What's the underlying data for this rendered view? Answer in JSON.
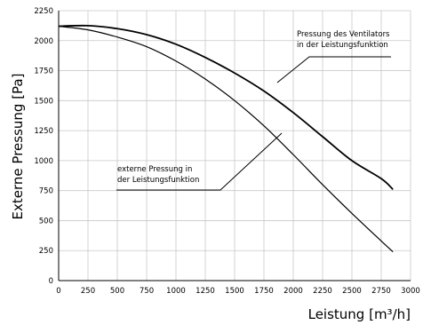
{
  "chart_data": {
    "type": "line",
    "xlabel": "Leistung [m³/h]",
    "ylabel": "Externe Pressung [Pa]",
    "xlim": [
      0,
      3000
    ],
    "ylim": [
      0,
      2250
    ],
    "x_ticks": [
      0,
      250,
      500,
      750,
      1000,
      1250,
      1500,
      1750,
      2000,
      2250,
      2500,
      2750,
      3000
    ],
    "x_tick_labels": [
      "0",
      "250",
      "500",
      "750",
      "1000",
      "1250",
      "1500",
      "1750",
      "2000",
      "2250",
      "2500",
      "2750",
      "3000"
    ],
    "y_ticks": [
      0,
      250,
      500,
      750,
      1000,
      1250,
      1500,
      1750,
      2000,
      2250
    ],
    "y_tick_labels": [
      "0",
      "250",
      "500",
      "750",
      "1000",
      "1250",
      "1500",
      "1750",
      "2000",
      "2250"
    ],
    "grid": true,
    "series": [
      {
        "name": "Pressung des Ventilators in der Leistungsfunktion",
        "x": [
          0,
          250,
          500,
          750,
          1000,
          1250,
          1500,
          1750,
          2000,
          2250,
          2500,
          2750,
          2850
        ],
        "y": [
          2120,
          2125,
          2100,
          2050,
          1970,
          1860,
          1730,
          1580,
          1400,
          1200,
          1000,
          850,
          760
        ]
      },
      {
        "name": "externe Pressung in der Leistungsfunktion",
        "x": [
          0,
          250,
          500,
          750,
          1000,
          1250,
          1500,
          1750,
          2000,
          2250,
          2500,
          2750,
          2850
        ],
        "y": [
          2120,
          2090,
          2030,
          1950,
          1830,
          1680,
          1500,
          1290,
          1050,
          800,
          560,
          330,
          240
        ]
      }
    ],
    "annotations": [
      {
        "lines": [
          "Pressung des Ventilators",
          "in der Leistungsfunktion"
        ],
        "series": 0
      },
      {
        "lines": [
          "externe Pressung in",
          "der Leistungsfunktion"
        ],
        "series": 1
      }
    ]
  }
}
